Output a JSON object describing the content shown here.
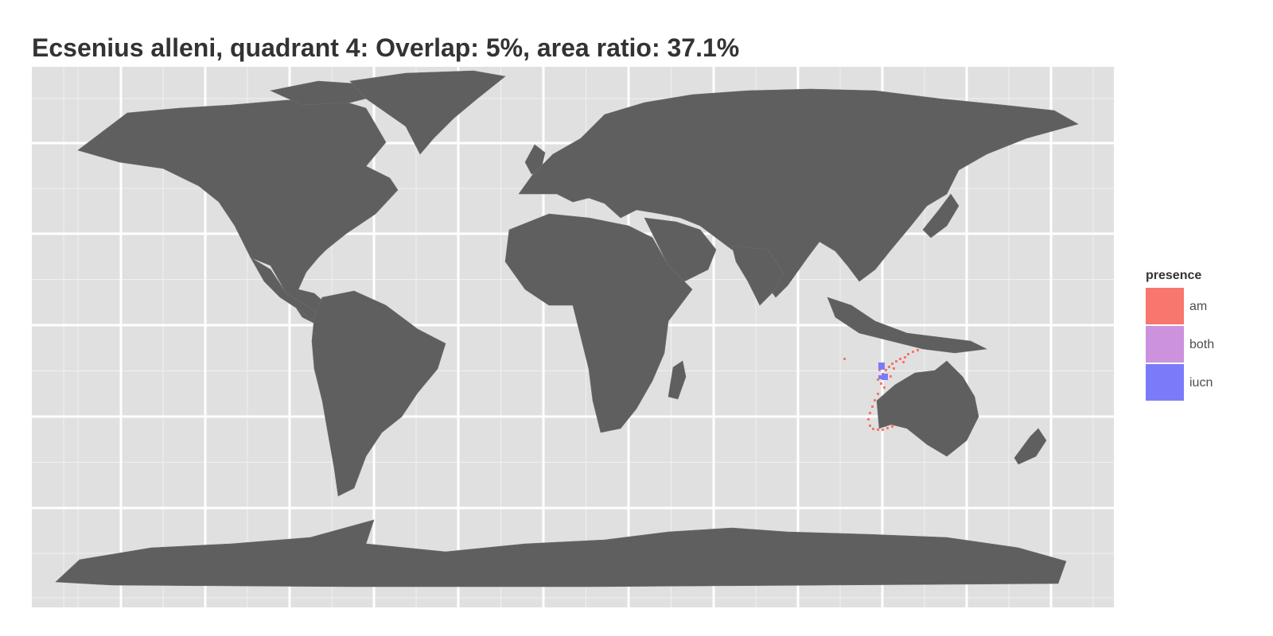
{
  "title": "Ecsenius alleni, quadrant 4: Overlap: 5%, area ratio: 37.1%",
  "colors": {
    "panel_bg": "#e0e0e0",
    "grid_major": "#ffffff",
    "land": "#5f5f5f",
    "am": "#f8766d",
    "both": "#cc92dd",
    "iucn": "#7b7bfa"
  },
  "legend": {
    "title": "presence",
    "items": [
      {
        "label": "am",
        "color": "#f8766d"
      },
      {
        "label": "both",
        "color": "#cc92dd"
      },
      {
        "label": "iucn",
        "color": "#7b7bfa"
      }
    ]
  },
  "map": {
    "projection": "equirectangular",
    "grid": true,
    "land_features": [
      "north-america",
      "greenland",
      "south-america",
      "africa",
      "eurasia",
      "arabia",
      "india",
      "madagascar",
      "australia",
      "new-zealand",
      "japan",
      "indonesia",
      "antarctica",
      "uk"
    ]
  }
}
